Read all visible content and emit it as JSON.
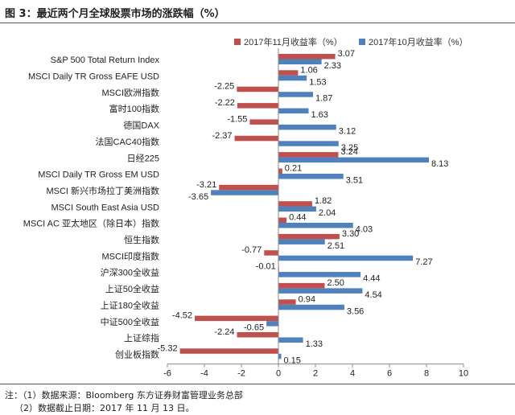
{
  "title": "图 3：最近两个月全球股票市场的涨跌幅（%）",
  "notes": [
    "注：（1）数据来源：Bloomberg 东方证券财富管理业务总部",
    "（2）数据截止日期：2017 年 11 月 13 日。"
  ],
  "chart_data": {
    "type": "bar",
    "orientation": "horizontal",
    "title": "最近两个月全球股票市场的涨跌幅（%）",
    "xlim": [
      -6,
      10
    ],
    "xticks": [
      -6,
      -4,
      -2,
      0,
      2,
      4,
      6,
      8,
      10
    ],
    "legend_position": "top-right",
    "categories": [
      "S&P 500 Total Return Index",
      "MSCI Daily TR Gross EAFE USD",
      "MSCI欧洲指数",
      "富时100指数",
      "德国DAX",
      "法国CAC40指数",
      "日经225",
      "MSCI Daily TR Gross EM USD",
      "MSCI 新兴市场拉丁美洲指数",
      "MSCI South East Asia USD",
      "MSCI AC 亚太地区（除日本）指数",
      "恒生指数",
      "MSCI印度指数",
      "沪深300全收益",
      "上证50全收益",
      "上证180全收益",
      "中证500全收益",
      "上证综指",
      "创业板指数"
    ],
    "series": [
      {
        "name": "2017年11月收益率（%）",
        "color": "#c0504d",
        "values": [
          3.07,
          1.06,
          -2.25,
          -2.22,
          -1.55,
          -2.37,
          3.24,
          0.21,
          -3.21,
          1.82,
          0.44,
          3.3,
          -0.77,
          -0.01,
          2.5,
          0.94,
          -4.52,
          -2.24,
          -5.32
        ],
        "labels": [
          "3.07",
          "1.06",
          "-2.25",
          "-2.22",
          "-1.55",
          "-2.37",
          "3.24",
          "0.21",
          "-3.21",
          "1.82",
          "0.44",
          "3.30",
          "-0.77",
          "-0.01",
          "2.50",
          "0.94",
          "-4.52",
          "-2.24",
          "-5.32"
        ]
      },
      {
        "name": "2017年10月收益率（%）",
        "color": "#4f81bd",
        "values": [
          2.33,
          1.53,
          1.87,
          1.63,
          3.12,
          3.25,
          8.13,
          3.51,
          -3.65,
          2.04,
          4.03,
          2.51,
          7.27,
          4.44,
          4.54,
          3.56,
          -0.65,
          1.33,
          0.15
        ],
        "labels": [
          "2.33",
          "1.53",
          "1.87",
          "1.63",
          "3.12",
          "3.25",
          "8.13",
          "3.51",
          "-3.65",
          "2.04",
          "4.03",
          "2.51",
          "7.27",
          "4.44",
          "4.54",
          "3.56",
          "-0.65",
          "1.33",
          "0.15"
        ]
      }
    ]
  }
}
